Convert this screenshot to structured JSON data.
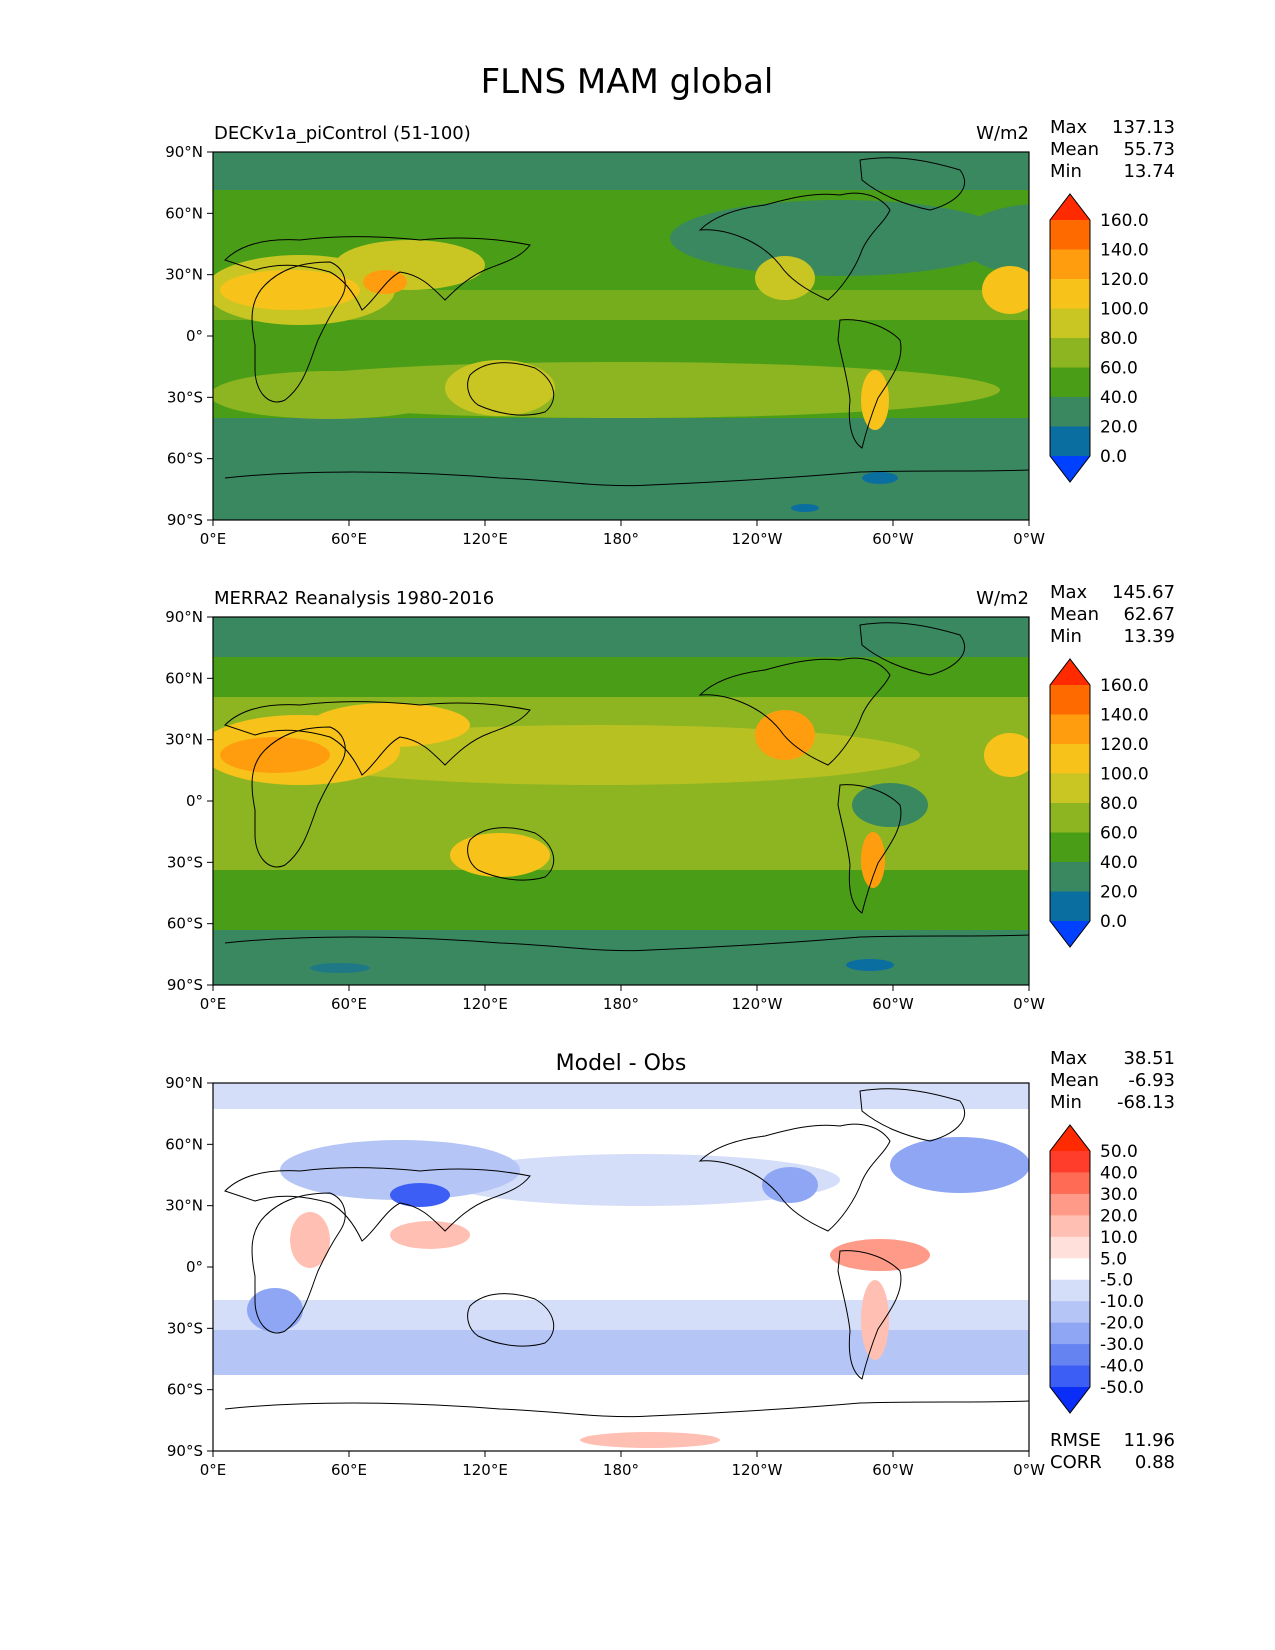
{
  "title": "FLNS MAM global",
  "axes": {
    "x_ticks": [
      "0°E",
      "60°E",
      "120°E",
      "180°",
      "120°W",
      "60°W",
      "0°W"
    ],
    "y_ticks": [
      "90°N",
      "60°N",
      "30°N",
      "0°",
      "30°S",
      "60°S",
      "90°S"
    ]
  },
  "panels": [
    {
      "id": "model",
      "left_title": "DECKv1a_piControl (51-100)",
      "center_title": "",
      "units": "W/m2",
      "stats": [
        {
          "label": "Max",
          "value": "137.13"
        },
        {
          "label": "Mean",
          "value": "55.73"
        },
        {
          "label": "Min",
          "value": "13.74"
        }
      ],
      "colorbar_labels": [
        "160.0",
        "140.0",
        "120.0",
        "100.0",
        "80.0",
        "60.0",
        "40.0",
        "20.0",
        "0.0"
      ],
      "colorbar_colors": [
        "#ff2a00",
        "#ff6a00",
        "#ff9d0f",
        "#f7c31a",
        "#c9c623",
        "#8db521",
        "#4a9e17",
        "#3a8860",
        "#0b6ea0",
        "#0040ff"
      ]
    },
    {
      "id": "obs",
      "left_title": "MERRA2 Reanalysis 1980-2016",
      "center_title": "",
      "units": "W/m2",
      "stats": [
        {
          "label": "Max",
          "value": "145.67"
        },
        {
          "label": "Mean",
          "value": "62.67"
        },
        {
          "label": "Min",
          "value": "13.39"
        }
      ],
      "colorbar_labels": [
        "160.0",
        "140.0",
        "120.0",
        "100.0",
        "80.0",
        "60.0",
        "40.0",
        "20.0",
        "0.0"
      ],
      "colorbar_colors": [
        "#ff2a00",
        "#ff6a00",
        "#ff9d0f",
        "#f7c31a",
        "#c9c623",
        "#8db521",
        "#4a9e17",
        "#3a8860",
        "#0b6ea0",
        "#0040ff"
      ]
    },
    {
      "id": "diff",
      "left_title": "",
      "center_title": "Model - Obs",
      "units": "",
      "stats": [
        {
          "label": "Max",
          "value": "38.51"
        },
        {
          "label": "Mean",
          "value": "-6.93"
        },
        {
          "label": "Min",
          "value": "-68.13"
        }
      ],
      "colorbar_labels": [
        "50.0",
        "40.0",
        "30.0",
        "20.0",
        "10.0",
        "5.0",
        "-5.0",
        "-10.0",
        "-20.0",
        "-30.0",
        "-40.0",
        "-50.0"
      ],
      "colorbar_colors": [
        "#ff2a00",
        "#ff3d2a",
        "#ff6b55",
        "#ff9a88",
        "#ffbfb3",
        "#ffe0da",
        "#ffffff",
        "#d5def8",
        "#b5c5f6",
        "#8ea6f3",
        "#6683f2",
        "#3d5ef5",
        "#0a2df8"
      ],
      "footer_stats": [
        {
          "label": "RMSE",
          "value": "11.96"
        },
        {
          "label": "CORR",
          "value": "0.88"
        }
      ]
    }
  ],
  "map_colors": {
    "model": {
      "base": "#3a8860",
      "mid": "#4a9e17",
      "land": "#8db521",
      "warm": "#c9c623",
      "hot": "#f7c31a",
      "hottest": "#ff9d0f",
      "cold": "#0b6ea0"
    },
    "obs": {
      "base": "#3a8860",
      "mid": "#4a9e17",
      "land": "#8db521",
      "warm": "#c9c623",
      "hot": "#f7c31a",
      "hottest": "#ff9d0f",
      "cold": "#0b6ea0"
    },
    "diff": {
      "base": "#ffffff",
      "lightblue": "#d5def8",
      "blue": "#b5c5f6",
      "midblue": "#8ea6f3",
      "darkblue": "#3d5ef5",
      "lightred": "#ffbfb3",
      "red": "#ff9a88"
    }
  }
}
